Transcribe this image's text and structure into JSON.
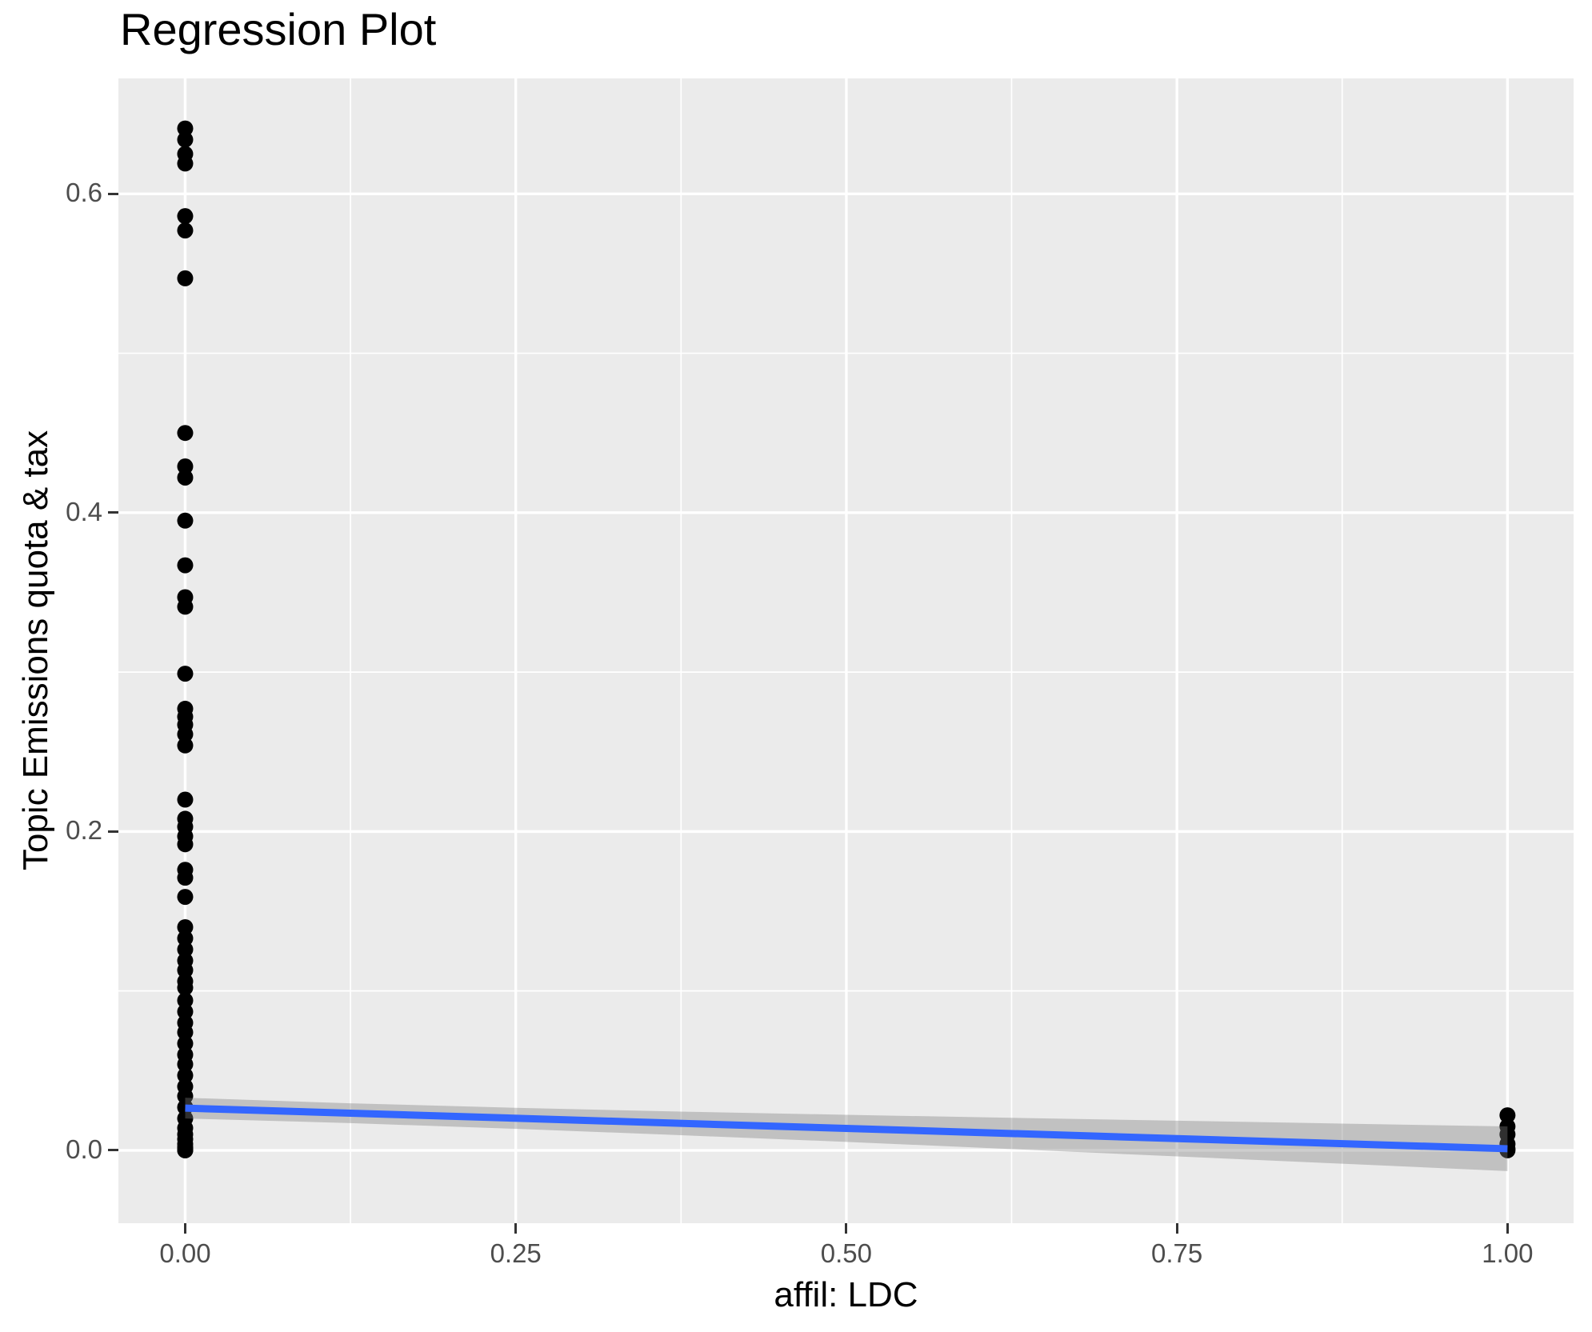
{
  "style": {
    "panel_bg": "#EBEBEB",
    "grid_color": "#FFFFFF",
    "point_color": "#000000",
    "line_color": "#3366FF",
    "ribbon_color": "rgba(127,127,127,0.38)",
    "tick_label_color": "#4D4D4D",
    "tick_mark_color": "#333333",
    "text_color": "#000000"
  },
  "chart_data": {
    "type": "scatter",
    "title": "Regression Plot",
    "xlabel": "affil: LDC",
    "ylabel": "Topic Emissions quota & tax",
    "legend": false,
    "grid": "white major and minor gridlines on grey panel",
    "xlim": [
      -0.0505,
      1.05
    ],
    "ylim": [
      -0.0457,
      0.6724
    ],
    "x_ticks": [
      {
        "value": 0.0,
        "label": "0.00"
      },
      {
        "value": 0.25,
        "label": "0.25"
      },
      {
        "value": 0.5,
        "label": "0.50"
      },
      {
        "value": 0.75,
        "label": "0.75"
      },
      {
        "value": 1.0,
        "label": "1.00"
      }
    ],
    "y_ticks": [
      {
        "value": 0.0,
        "label": "0.0"
      },
      {
        "value": 0.2,
        "label": "0.2"
      },
      {
        "value": 0.4,
        "label": "0.4"
      },
      {
        "value": 0.6,
        "label": "0.6"
      }
    ],
    "x_minor_gridlines": [
      0.125,
      0.375,
      0.625,
      0.875
    ],
    "y_minor_gridlines": [
      0.1,
      0.3,
      0.5
    ],
    "series": [
      {
        "name": "observations at affil LDC = 0",
        "x": 0,
        "y": [
          0.641,
          0.634,
          0.625,
          0.619,
          0.586,
          0.577,
          0.547,
          0.45,
          0.429,
          0.422,
          0.395,
          0.367,
          0.347,
          0.341,
          0.299,
          0.277,
          0.272,
          0.267,
          0.261,
          0.254,
          0.22,
          0.208,
          0.203,
          0.197,
          0.192,
          0.176,
          0.171,
          0.159,
          0.14,
          0.133,
          0.126,
          0.119,
          0.113,
          0.106,
          0.102,
          0.094,
          0.087,
          0.08,
          0.074,
          0.067,
          0.06,
          0.054,
          0.047,
          0.04,
          0.034,
          0.027,
          0.02,
          0.014,
          0.01,
          0.007,
          0.004,
          0.002,
          0.001,
          0.0,
          0.0
        ]
      },
      {
        "name": "observations at affil LDC = 1",
        "x": 1,
        "y": [
          0.022,
          0.015,
          0.01,
          0.004,
          0.001,
          0.0
        ]
      }
    ],
    "regression_line": {
      "x": [
        0,
        1
      ],
      "y": [
        0.0265,
        0.001
      ]
    },
    "confidence_band": {
      "x": [
        0.0,
        0.125,
        0.25,
        0.375,
        0.5,
        0.625,
        0.75,
        0.875,
        1.0
      ],
      "upper": [
        0.033,
        0.0295,
        0.0267,
        0.0243,
        0.0223,
        0.0204,
        0.0186,
        0.0168,
        0.015
      ],
      "lower": [
        0.02,
        0.0171,
        0.0135,
        0.0095,
        0.0053,
        0.0008,
        -0.0038,
        -0.0084,
        -0.013
      ]
    }
  }
}
